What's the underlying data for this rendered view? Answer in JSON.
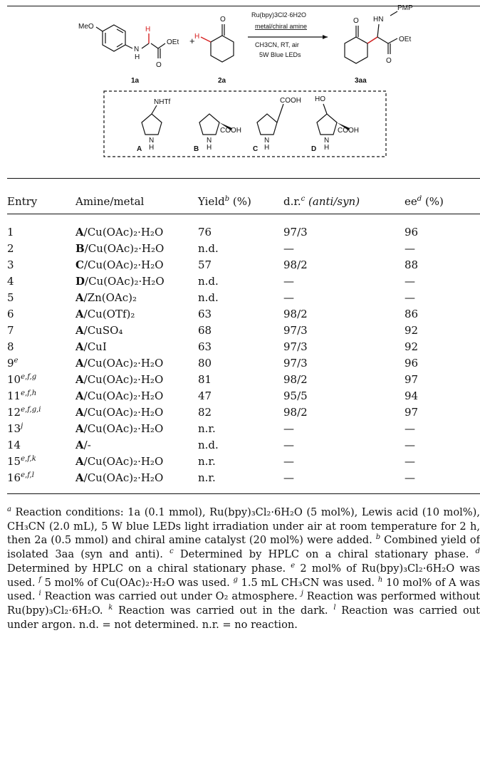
{
  "scheme": {
    "reactant_1a": {
      "substituent": "MeO",
      "nh": "N",
      "h_mark": "H",
      "nh_h": "H",
      "ester": "OEt",
      "carbonyl_o": "O",
      "label": "1a"
    },
    "plus": "+",
    "reactant_2a": {
      "oxo": "O",
      "h_mark": "H",
      "label": "2a"
    },
    "conditions": [
      "Ru(bpy)3Cl2·6H2O",
      "metal/chiral amine",
      "CH3CN, RT, air",
      "5W Blue LEDs"
    ],
    "product_3aa": {
      "pmp": "PMP",
      "hn": "HN",
      "oxo": "O",
      "ester": "OEt",
      "carbonyl_o": "O",
      "label": "3aa"
    },
    "catalysts": [
      {
        "label": "A",
        "group": "NHTf",
        "nh": "N",
        "h": "H"
      },
      {
        "label": "B",
        "group": "COOH",
        "nh": "N",
        "h": "H"
      },
      {
        "label": "C",
        "group": "COOH",
        "nh": "N",
        "h": "H"
      },
      {
        "label": "D",
        "group": "COOH",
        "ho": "HO",
        "nh": "N",
        "h": "H"
      }
    ]
  },
  "table": {
    "headers": {
      "entry": "Entry",
      "amine": "Amine/metal",
      "yield": "Yield",
      "yield_mark": "b",
      "yield_unit": " (%)",
      "dr": "d.r.",
      "dr_mark": "c",
      "dr_detail": " (anti/syn)",
      "ee": "ee",
      "ee_mark": "d",
      "ee_unit": " (%)"
    },
    "rows": [
      {
        "entry": "1",
        "mark": "",
        "amine": "A",
        "metal": "/Cu(OAc)₂·H₂O",
        "yield": "76",
        "dr": "97/3",
        "ee": "96"
      },
      {
        "entry": "2",
        "mark": "",
        "amine": "B",
        "metal": "/Cu(OAc)₂·H₂O",
        "yield": "n.d.",
        "dr": "—",
        "ee": "—"
      },
      {
        "entry": "3",
        "mark": "",
        "amine": "C",
        "metal": "/Cu(OAc)₂·H₂O",
        "yield": "57",
        "dr": "98/2",
        "ee": "88"
      },
      {
        "entry": "4",
        "mark": "",
        "amine": "D",
        "metal": "/Cu(OAc)₂·H₂O",
        "yield": "n.d.",
        "dr": "—",
        "ee": "—"
      },
      {
        "entry": "5",
        "mark": "",
        "amine": "A",
        "metal": "/Zn(OAc)₂",
        "yield": "n.d.",
        "dr": "—",
        "ee": "—"
      },
      {
        "entry": "6",
        "mark": "",
        "amine": "A",
        "metal": "/Cu(OTf)₂",
        "yield": "63",
        "dr": "98/2",
        "ee": "86"
      },
      {
        "entry": "7",
        "mark": "",
        "amine": "A",
        "metal": "/CuSO₄",
        "yield": "68",
        "dr": "97/3",
        "ee": "92"
      },
      {
        "entry": "8",
        "mark": "",
        "amine": "A",
        "metal": "/CuI",
        "yield": "63",
        "dr": "97/3",
        "ee": "92"
      },
      {
        "entry": "9",
        "mark": "e",
        "amine": "A",
        "metal": "/Cu(OAc)₂·H₂O",
        "yield": "80",
        "dr": "97/3",
        "ee": "96"
      },
      {
        "entry": "10",
        "mark": "e,f,g",
        "amine": "A",
        "metal": "/Cu(OAc)₂·H₂O",
        "yield": "81",
        "dr": "98/2",
        "ee": "97"
      },
      {
        "entry": "11",
        "mark": "e,f,h",
        "amine": "A",
        "metal": "/Cu(OAc)₂·H₂O",
        "yield": "47",
        "dr": "95/5",
        "ee": "94"
      },
      {
        "entry": "12",
        "mark": "e,f,g,i",
        "amine": "A",
        "metal": "/Cu(OAc)₂·H₂O",
        "yield": "82",
        "dr": "98/2",
        "ee": "97"
      },
      {
        "entry": "13",
        "mark": "j",
        "amine": "A",
        "metal": "/Cu(OAc)₂·H₂O",
        "yield": "n.r.",
        "dr": "—",
        "ee": "—"
      },
      {
        "entry": "14",
        "mark": "",
        "amine": "A",
        "metal": "/-",
        "yield": "n.d.",
        "dr": "—",
        "ee": "—"
      },
      {
        "entry": "15",
        "mark": "e,f,k",
        "amine": "A",
        "metal": "/Cu(OAc)₂·H₂O",
        "yield": "n.r.",
        "dr": "—",
        "ee": "—"
      },
      {
        "entry": "16",
        "mark": "e,f,l",
        "amine": "A",
        "metal": "/Cu(OAc)₂·H₂O",
        "yield": "n.r.",
        "dr": "—",
        "ee": "—"
      }
    ]
  },
  "footnotes": [
    {
      "mark": "a",
      "text": "Reaction conditions: 1a (0.1 mmol), Ru(bpy)₃Cl₂·6H₂O (5 mol%), Lewis acid (10 mol%), CH₃CN (2.0 mL), 5 W blue LEDs light irradiation under air at room temperature for 2 h, then 2a (0.5 mmol) and chiral amine catalyst (20 mol%) were added."
    },
    {
      "mark": "b",
      "text": "Combined yield of isolated 3aa (syn and anti)."
    },
    {
      "mark": "c",
      "text": "Determined by HPLC on a chiral stationary phase."
    },
    {
      "mark": "d",
      "text": "Determined by HPLC on a chiral stationary phase."
    },
    {
      "mark": "e",
      "text": "2 mol% of Ru(bpy)₃Cl₂·6H₂O was used."
    },
    {
      "mark": "f",
      "text": "5 mol% of Cu(OAc)₂·H₂O was used."
    },
    {
      "mark": "g",
      "text": "1.5 mL CH₃CN was used."
    },
    {
      "mark": "h",
      "text": "10 mol% of A was used."
    },
    {
      "mark": "i",
      "text": "Reaction was carried out under O₂ atmosphere."
    },
    {
      "mark": "j",
      "text": "Reaction was performed without Ru(bpy)₃Cl₂·6H₂O."
    },
    {
      "mark": "k",
      "text": "Reaction was carried out in the dark."
    },
    {
      "mark": "l",
      "text": "Reaction was carried out under argon. n.d. = not determined. n.r. = no reaction."
    }
  ]
}
